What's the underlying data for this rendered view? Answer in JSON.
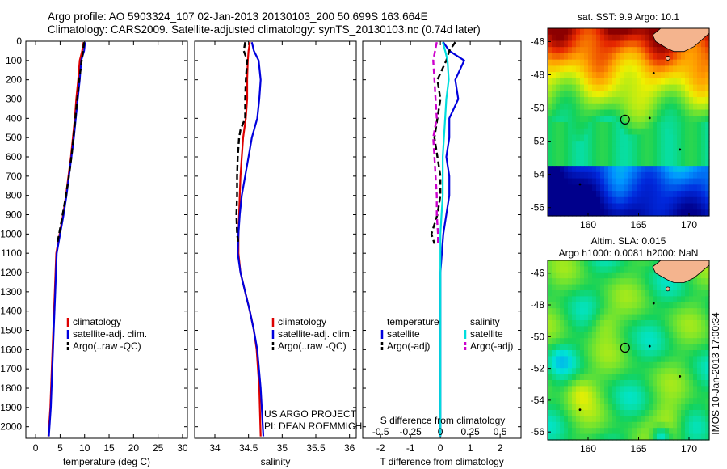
{
  "header": {
    "line1": "Argo profile: AO 5903324_107 02-Jan-2013 20130103_200 50.699S 163.664E",
    "line2": "Climatology: CARS2009. Satellite-adjusted climatology: synTS_20130103.nc (0.74d later)"
  },
  "chart_data": [
    {
      "type": "line",
      "name": "temperature-profile",
      "xlabel": "temperature (deg C)",
      "ylabel": "",
      "xlim": [
        -2,
        31
      ],
      "ylim": [
        2060,
        0
      ],
      "xticks": [
        "0",
        "5",
        "10",
        "15",
        "20",
        "25",
        "30"
      ],
      "yticks": [
        "0",
        "100",
        "200",
        "300",
        "400",
        "500",
        "600",
        "700",
        "800",
        "900",
        "1000",
        "1100",
        "1200",
        "1300",
        "1400",
        "1500",
        "1600",
        "1700",
        "1800",
        "1900",
        "2000"
      ],
      "legend": [
        "climatology",
        "satellite-adj. clim.",
        "Argo(..raw -QC)"
      ],
      "series": [
        {
          "name": "climatology",
          "color": "#dd0000",
          "points": [
            [
              9.8,
              5
            ],
            [
              9.5,
              50
            ],
            [
              9.0,
              100
            ],
            [
              8.7,
              200
            ],
            [
              8.3,
              300
            ],
            [
              8.0,
              400
            ],
            [
              7.6,
              500
            ],
            [
              7.2,
              600
            ],
            [
              6.7,
              700
            ],
            [
              6.2,
              800
            ],
            [
              5.6,
              900
            ],
            [
              4.9,
              1000
            ],
            [
              4.2,
              1100
            ],
            [
              3.9,
              1300
            ],
            [
              3.6,
              1500
            ],
            [
              3.3,
              1700
            ],
            [
              3.0,
              1900
            ],
            [
              2.6,
              2050
            ]
          ]
        },
        {
          "name": "satellite-adj. clim.",
          "color": "#0000dd",
          "points": [
            [
              10.1,
              5
            ],
            [
              9.9,
              50
            ],
            [
              9.3,
              100
            ],
            [
              9.0,
              200
            ],
            [
              8.6,
              300
            ],
            [
              8.2,
              400
            ],
            [
              7.8,
              500
            ],
            [
              7.3,
              600
            ],
            [
              6.8,
              700
            ],
            [
              6.3,
              800
            ],
            [
              5.7,
              900
            ],
            [
              5.0,
              1000
            ],
            [
              4.3,
              1100
            ],
            [
              4.0,
              1300
            ],
            [
              3.7,
              1500
            ],
            [
              3.4,
              1700
            ],
            [
              3.1,
              1900
            ],
            [
              2.7,
              2050
            ]
          ]
        },
        {
          "name": "Argo(..raw -QC)",
          "color": "#000000",
          "dash": true,
          "points": [
            [
              9.9,
              5
            ],
            [
              9.7,
              50
            ],
            [
              9.4,
              100
            ],
            [
              8.9,
              200
            ],
            [
              8.5,
              300
            ],
            [
              8.1,
              400
            ],
            [
              7.7,
              500
            ],
            [
              7.3,
              600
            ],
            [
              6.8,
              700
            ],
            [
              6.2,
              800
            ],
            [
              5.5,
              900
            ],
            [
              4.8,
              1000
            ],
            [
              4.4,
              1050
            ]
          ]
        }
      ]
    },
    {
      "type": "line",
      "name": "salinity-profile",
      "xlabel": "salinity",
      "xlim": [
        33.7,
        36.1
      ],
      "ylim": [
        2060,
        0
      ],
      "xticks": [
        "34",
        "34.5",
        "35",
        "35.5",
        "36"
      ],
      "legend": [
        "climatology",
        "satellite-adj. clim.",
        "Argo(..raw -QC)"
      ],
      "annotations": [
        "US ARGO PROJECT",
        "PI: DEAN ROEMMICH"
      ],
      "series": [
        {
          "name": "climatology",
          "color": "#dd0000",
          "points": [
            [
              34.52,
              5
            ],
            [
              34.5,
              50
            ],
            [
              34.49,
              100
            ],
            [
              34.48,
              200
            ],
            [
              34.48,
              300
            ],
            [
              34.46,
              400
            ],
            [
              34.42,
              500
            ],
            [
              34.4,
              600
            ],
            [
              34.38,
              700
            ],
            [
              34.37,
              800
            ],
            [
              34.36,
              900
            ],
            [
              34.35,
              1000
            ],
            [
              34.35,
              1100
            ],
            [
              34.38,
              1200
            ],
            [
              34.45,
              1300
            ],
            [
              34.52,
              1400
            ],
            [
              34.58,
              1500
            ],
            [
              34.62,
              1600
            ],
            [
              34.66,
              1800
            ],
            [
              34.68,
              2050
            ]
          ]
        },
        {
          "name": "satellite-adj. clim.",
          "color": "#0000dd",
          "points": [
            [
              34.55,
              5
            ],
            [
              34.58,
              50
            ],
            [
              34.65,
              100
            ],
            [
              34.68,
              200
            ],
            [
              34.66,
              300
            ],
            [
              34.63,
              400
            ],
            [
              34.55,
              500
            ],
            [
              34.5,
              600
            ],
            [
              34.45,
              700
            ],
            [
              34.4,
              800
            ],
            [
              34.37,
              900
            ],
            [
              34.35,
              1000
            ],
            [
              34.34,
              1100
            ],
            [
              34.38,
              1200
            ],
            [
              34.45,
              1300
            ],
            [
              34.52,
              1400
            ],
            [
              34.58,
              1500
            ],
            [
              34.63,
              1600
            ],
            [
              34.68,
              1800
            ],
            [
              34.72,
              2050
            ]
          ]
        },
        {
          "name": "Argo(..raw -QC)",
          "color": "#000000",
          "dash": true,
          "points": [
            [
              34.45,
              5
            ],
            [
              34.43,
              50
            ],
            [
              34.48,
              100
            ],
            [
              34.46,
              200
            ],
            [
              34.45,
              300
            ],
            [
              34.45,
              400
            ],
            [
              34.38,
              460
            ],
            [
              34.36,
              500
            ],
            [
              34.34,
              600
            ],
            [
              34.33,
              700
            ],
            [
              34.33,
              800
            ],
            [
              34.32,
              900
            ],
            [
              34.33,
              1000
            ],
            [
              34.35,
              1050
            ]
          ]
        }
      ]
    },
    {
      "type": "line",
      "name": "difference-from-climatology",
      "xlabel": "T difference from climatology",
      "xlabel_top": "S difference from climatology",
      "xlim": [
        -2.6,
        2.7
      ],
      "xlim_salinity": [
        -0.65,
        0.675
      ],
      "ylim": [
        2060,
        0
      ],
      "xticks": [
        "-2",
        "-1",
        "0",
        "1",
        "2"
      ],
      "xticks_salinity": [
        "-0.5",
        "-0.25",
        "0",
        "0.25",
        "0.5"
      ],
      "legend_title_temperature": "temperature",
      "legend_title_salinity": "salinity",
      "legend": [
        "satellite",
        "Argo(-adj)",
        "satellite",
        "Argo(-adj)"
      ],
      "series": [
        {
          "name": "T satellite",
          "color": "#0000dd",
          "points": [
            [
              0.1,
              5
            ],
            [
              0.3,
              50
            ],
            [
              0.8,
              100
            ],
            [
              0.5,
              200
            ],
            [
              0.6,
              300
            ],
            [
              0.3,
              400
            ],
            [
              0.3,
              500
            ],
            [
              0.2,
              600
            ],
            [
              0.3,
              700
            ],
            [
              0.3,
              800
            ],
            [
              0.2,
              900
            ],
            [
              0.1,
              1000
            ],
            [
              0.05,
              1100
            ],
            [
              0,
              1200
            ],
            [
              0,
              1400
            ],
            [
              0,
              2050
            ]
          ]
        },
        {
          "name": "T Argo(-adj)",
          "color": "#000000",
          "dash": true,
          "points": [
            [
              0.5,
              5
            ],
            [
              0.3,
              50
            ],
            [
              0.2,
              100
            ],
            [
              -0.1,
              200
            ],
            [
              0,
              300
            ],
            [
              -0.2,
              500
            ],
            [
              -0.1,
              600
            ],
            [
              0,
              700
            ],
            [
              0,
              800
            ],
            [
              -0.1,
              900
            ],
            [
              -0.3,
              1000
            ],
            [
              -0.2,
              1050
            ]
          ]
        },
        {
          "name": "S satellite",
          "color": "#00dddd",
          "points": [
            [
              0.02,
              5
            ],
            [
              0.04,
              50
            ],
            [
              0.06,
              100
            ],
            [
              0.07,
              200
            ],
            [
              0.05,
              300
            ],
            [
              0.04,
              400
            ],
            [
              0.03,
              500
            ],
            [
              0.02,
              600
            ],
            [
              0.02,
              700
            ],
            [
              0.02,
              800
            ],
            [
              0.01,
              900
            ],
            [
              0,
              1000
            ],
            [
              0,
              1200
            ],
            [
              0,
              1500
            ],
            [
              0,
              2050
            ]
          ]
        },
        {
          "name": "S Argo(-adj)",
          "color": "#cc00cc",
          "dash": true,
          "points": [
            [
              -0.03,
              5
            ],
            [
              -0.06,
              100
            ],
            [
              -0.05,
              200
            ],
            [
              -0.04,
              300
            ],
            [
              -0.03,
              400
            ],
            [
              -0.06,
              500
            ],
            [
              -0.05,
              600
            ],
            [
              -0.04,
              700
            ],
            [
              -0.03,
              800
            ],
            [
              -0.03,
              900
            ],
            [
              -0.02,
              1000
            ],
            [
              -0.02,
              1050
            ]
          ]
        }
      ]
    },
    {
      "type": "heatmap",
      "name": "sst-map",
      "title": "sat. SST: 9.9 Argo: 10.1",
      "xlim": [
        156,
        172
      ],
      "ylim": [
        -56.5,
        -45.2
      ],
      "xticks": [
        "160",
        "165",
        "170"
      ],
      "yticks": [
        "-46",
        "-48",
        "-50",
        "-52",
        "-54",
        "-56"
      ],
      "argo_position": [
        163.664,
        -50.699
      ]
    },
    {
      "type": "heatmap",
      "name": "sla-map",
      "title_line1": "Altim. SLA: 0.015",
      "title_line2": "Argo h1000: 0.0081 h2000: NaN",
      "xlim": [
        156,
        172
      ],
      "ylim": [
        -56.5,
        -45.2
      ],
      "xticks": [
        "160",
        "165",
        "170"
      ],
      "yticks": [
        "-46",
        "-48",
        "-50",
        "-52",
        "-54",
        "-56"
      ],
      "argo_position": [
        163.664,
        -50.699
      ],
      "side_label": "IMOS 10-Jan-2013 17:00:34"
    }
  ],
  "colors": {
    "climatology": "#dd0000",
    "satellite_clim": "#0000dd",
    "argo": "#000000",
    "salinity_satellite": "#00dddd",
    "salinity_argo": "#cc00cc",
    "land": "#f4b48e"
  }
}
